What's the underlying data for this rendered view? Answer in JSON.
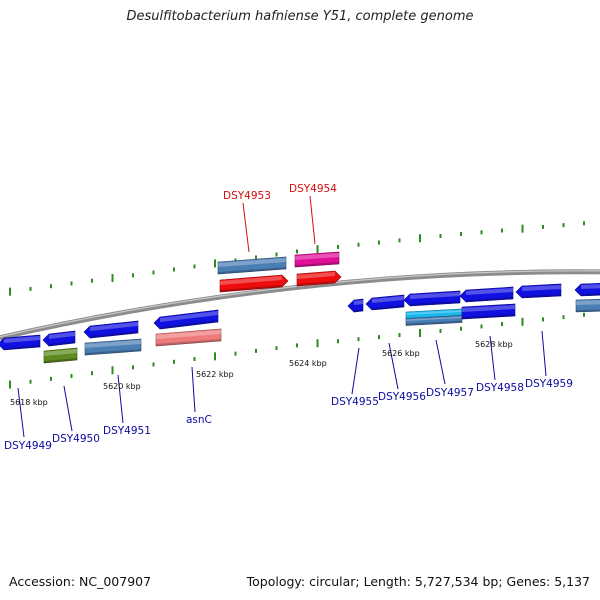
{
  "title": "Desulfitobacterium hafniense Y51, complete genome",
  "footer": {
    "accession": "Accession: NC_007907",
    "summary": "Topology: circular; Length: 5,727,534 bp; Genes: 5,137"
  },
  "colors": {
    "backbone": "#8c8c8c",
    "tick": "#2e8b22",
    "cds_blue": "#1010e0",
    "steel": "#4a7fb6",
    "red": "#ee0d0d",
    "magenta": "#e0109a",
    "salmon": "#ee7b7b",
    "olive": "#5e8a20",
    "cyan": "#18b7ee",
    "label_blue": "#0b0b9e",
    "label_red": "#d40d0d"
  },
  "kbp_labels": [
    {
      "text": "5618 kbp"
    },
    {
      "text": "5620 kbp"
    },
    {
      "text": "5622 kbp"
    },
    {
      "text": "5624 kbp"
    },
    {
      "text": "5626 kbp"
    },
    {
      "text": "5628 kbp"
    }
  ],
  "gene_labels": [
    {
      "name": "DSY4949",
      "color": "label_blue"
    },
    {
      "name": "DSY4950",
      "color": "label_blue"
    },
    {
      "name": "DSY4951",
      "color": "label_blue"
    },
    {
      "name": "asnC",
      "color": "label_blue"
    },
    {
      "name": "DSY4953",
      "color": "label_red"
    },
    {
      "name": "DSY4954",
      "color": "label_red"
    },
    {
      "name": "DSY4955",
      "color": "label_blue"
    },
    {
      "name": "DSY4956",
      "color": "label_blue"
    },
    {
      "name": "DSY4957",
      "color": "label_blue"
    },
    {
      "name": "DSY4958",
      "color": "label_blue"
    },
    {
      "name": "DSY4959",
      "color": "label_blue"
    }
  ]
}
